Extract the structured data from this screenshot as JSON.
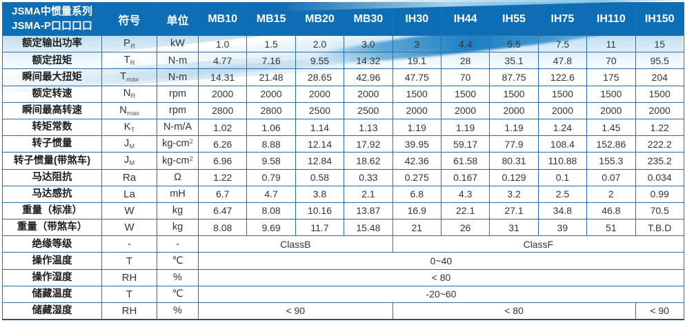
{
  "colors": {
    "header_bg": "#0E6EB5",
    "grid_border": "#2A6CAE",
    "outer_border": "#14568F",
    "swoosh_blue": "#1E80C1",
    "wash_blue": "#BCDCF0",
    "text_dark": "#333333"
  },
  "table": {
    "title_line1": "JSMA中惯量系列",
    "title_line2": "JSMA-P口口口口",
    "symbol_header": "符号",
    "unit_header": "单位",
    "models": [
      "MB10",
      "MB15",
      "MB20",
      "MB30",
      "IH30",
      "IH44",
      "IH55",
      "IH75",
      "IH110",
      "IH150"
    ],
    "rows": [
      {
        "label": "额定输出功率",
        "symbol": "P_{R}",
        "unit": "kW",
        "cells": [
          "1.0",
          "1.5",
          "2.0",
          "3.0",
          "3",
          "4.4",
          "5.5",
          "7.5",
          "11",
          "15"
        ]
      },
      {
        "label": "额定扭矩",
        "symbol": "T_{R}",
        "unit": "N-m",
        "cells": [
          "4.77",
          "7.16",
          "9.55",
          "14.32",
          "19.1",
          "28",
          "35.1",
          "47.8",
          "70",
          "95.5"
        ]
      },
      {
        "label": "瞬间最大扭矩",
        "symbol": "T_{max}",
        "unit": "N-m",
        "cells": [
          "14.31",
          "21.48",
          "28.65",
          "42.96",
          "47.75",
          "70",
          "87.75",
          "122.6",
          "175",
          "204"
        ]
      },
      {
        "label": "额定转速",
        "symbol": "N_{R}",
        "unit": "rpm",
        "cells": [
          "2000",
          "2000",
          "2000",
          "2000",
          "1500",
          "1500",
          "1500",
          "1500",
          "1500",
          "1500"
        ]
      },
      {
        "label": "瞬间最高转速",
        "symbol": "N_{max}",
        "unit": "rpm",
        "cells": [
          "2800",
          "2800",
          "2500",
          "2500",
          "2000",
          "2000",
          "2000",
          "2000",
          "2000",
          "2000"
        ]
      },
      {
        "label": "转矩常数",
        "symbol": "K_{T}",
        "unit": "N-m/A",
        "cells": [
          "1.02",
          "1.06",
          "1.14",
          "1.13",
          "1.19",
          "1.19",
          "1.19",
          "1.24",
          "1.45",
          "1.22"
        ]
      },
      {
        "label": "转子惯量",
        "symbol": "J_{M}",
        "unit": "kg-cm^{2}",
        "cells": [
          "6.26",
          "8.88",
          "12.14",
          "17.92",
          "39.95",
          "59.17",
          "77.9",
          "108.4",
          "152.86",
          "222.2"
        ]
      },
      {
        "label": "转子惯量(带煞车)",
        "symbol": "J_{M}",
        "unit": "kg-cm^{2}",
        "cells": [
          "6.96",
          "9.58",
          "12.84",
          "18.62",
          "42.36",
          "61.58",
          "80.31",
          "110.88",
          "155.3",
          "235.2"
        ]
      },
      {
        "label": "马达阻抗",
        "symbol": "Ra",
        "unit": "Ω",
        "cells": [
          "1.22",
          "0.79",
          "0.58",
          "0.33",
          "0.275",
          "0.167",
          "0.129",
          "0.1",
          "0.07",
          "0.034"
        ]
      },
      {
        "label": "马达感抗",
        "symbol": "La",
        "unit": "mH",
        "cells": [
          "6.7",
          "4.7",
          "3.8",
          "2.1",
          "6.8",
          "4.3",
          "3.2",
          "2.5",
          "2",
          "0.99"
        ]
      },
      {
        "label": "重量（标准）",
        "symbol": "W",
        "unit": "kg",
        "cells": [
          "6.47",
          "8.08",
          "10.16",
          "13.87",
          "16.9",
          "22.1",
          "27.1",
          "34.8",
          "46.8",
          "70.5"
        ]
      },
      {
        "label": "重量（带煞车）",
        "symbol": "W",
        "unit": "kg",
        "cells": [
          "8.08",
          "9.69",
          "11.7",
          "15.48",
          "21",
          "26",
          "31",
          "39",
          "51",
          "T.B.D"
        ]
      },
      {
        "label": "绝缘等级",
        "symbol": "-",
        "unit": "-",
        "cells": [
          {
            "text": "ClassB",
            "span": 4
          },
          {
            "text": "ClassF",
            "span": 6
          }
        ]
      },
      {
        "label": "操作温度",
        "symbol": "T",
        "unit": "℃",
        "cells": [
          {
            "text": "0~40",
            "span": 10
          }
        ]
      },
      {
        "label": "操作湿度",
        "symbol": "RH",
        "unit": "%",
        "cells": [
          {
            "text": "< 80",
            "span": 10
          }
        ]
      },
      {
        "label": "储藏温度",
        "symbol": "T",
        "unit": "℃",
        "cells": [
          {
            "text": "-20~60",
            "span": 10
          }
        ]
      },
      {
        "label": "储藏湿度",
        "symbol": "RH",
        "unit": "%",
        "cells": [
          {
            "text": "< 90",
            "span": 4
          },
          {
            "text": "< 80",
            "span": 5
          },
          {
            "text": "< 90",
            "span": 1
          }
        ]
      }
    ]
  }
}
